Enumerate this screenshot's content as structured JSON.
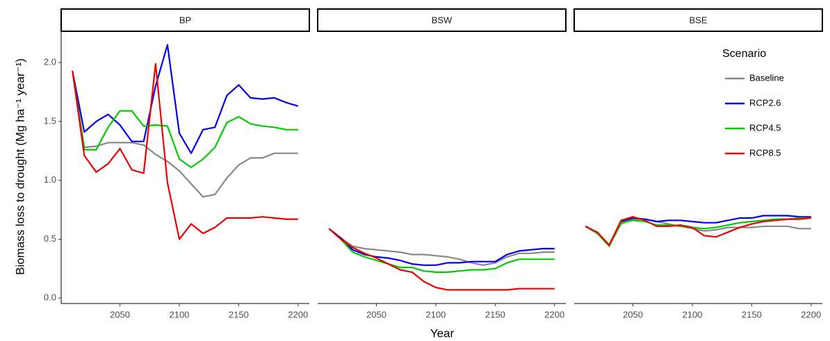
{
  "x_label": "Year",
  "y_label": "Biomass loss to drought (Mg ha⁻¹ year⁻¹)",
  "legend_title": "Scenario",
  "chart_data": [
    {
      "type": "line",
      "title": "BP",
      "x": [
        2010,
        2020,
        2030,
        2040,
        2050,
        2060,
        2070,
        2080,
        2090,
        2100,
        2110,
        2120,
        2130,
        2140,
        2150,
        2160,
        2170,
        2180,
        2190,
        2200
      ],
      "xlim": [
        2000.5,
        2209.5
      ],
      "xticks": [
        2050,
        2100,
        2150,
        2200
      ],
      "ylim": [
        -0.034,
        2.254
      ],
      "yticks": [
        {
          "value": 0,
          "label": "0.0"
        },
        0.5,
        {
          "value": 1,
          "label": "1.0"
        },
        1.5,
        {
          "value": 2,
          "label": "2.0"
        }
      ],
      "series": [
        {
          "name": "Baseline",
          "color": "#888888",
          "values": [
            1.93,
            1.28,
            1.29,
            1.32,
            1.32,
            1.32,
            1.3,
            1.22,
            1.16,
            1.08,
            0.97,
            0.86,
            0.88,
            1.02,
            1.13,
            1.19,
            1.19,
            1.23,
            1.23,
            1.23
          ]
        },
        {
          "name": "RCP2.6",
          "color": "#0000ee",
          "values": [
            1.93,
            1.41,
            1.5,
            1.56,
            1.47,
            1.33,
            1.33,
            1.8,
            2.15,
            1.4,
            1.23,
            1.43,
            1.45,
            1.72,
            1.81,
            1.7,
            1.69,
            1.7,
            1.66,
            1.63
          ]
        },
        {
          "name": "RCP4.5",
          "color": "#00cc00",
          "values": [
            1.93,
            1.26,
            1.26,
            1.45,
            1.59,
            1.59,
            1.46,
            1.47,
            1.46,
            1.18,
            1.11,
            1.18,
            1.28,
            1.49,
            1.54,
            1.48,
            1.46,
            1.45,
            1.43,
            1.43
          ]
        },
        {
          "name": "RCP8.5",
          "color": "#ee0000",
          "values": [
            1.93,
            1.21,
            1.07,
            1.14,
            1.27,
            1.09,
            1.06,
            1.99,
            0.98,
            0.5,
            0.63,
            0.55,
            0.6,
            0.68,
            0.68,
            0.68,
            0.69,
            0.68,
            0.67,
            0.67
          ]
        }
      ]
    },
    {
      "type": "line",
      "title": "BSW",
      "x": [
        2010,
        2020,
        2030,
        2040,
        2050,
        2060,
        2070,
        2080,
        2090,
        2100,
        2110,
        2120,
        2130,
        2140,
        2150,
        2160,
        2170,
        2180,
        2190,
        2200
      ],
      "xlim": [
        2000.5,
        2209.5
      ],
      "xticks": [
        2050,
        2100,
        2150,
        2200
      ],
      "ylim": [
        -0.034,
        2.254
      ],
      "series": [
        {
          "name": "Baseline",
          "color": "#888888",
          "values": [
            0.59,
            0.51,
            0.44,
            0.42,
            0.41,
            0.4,
            0.39,
            0.37,
            0.37,
            0.36,
            0.35,
            0.33,
            0.3,
            0.28,
            0.3,
            0.35,
            0.38,
            0.38,
            0.39,
            0.39
          ]
        },
        {
          "name": "RCP2.6",
          "color": "#0000ee",
          "values": [
            0.59,
            0.51,
            0.41,
            0.37,
            0.35,
            0.34,
            0.32,
            0.29,
            0.28,
            0.28,
            0.3,
            0.3,
            0.31,
            0.31,
            0.31,
            0.37,
            0.4,
            0.41,
            0.42,
            0.42
          ]
        },
        {
          "name": "RCP4.5",
          "color": "#00cc00",
          "values": [
            0.59,
            0.5,
            0.39,
            0.35,
            0.32,
            0.29,
            0.26,
            0.26,
            0.23,
            0.22,
            0.22,
            0.23,
            0.24,
            0.24,
            0.25,
            0.3,
            0.33,
            0.33,
            0.33,
            0.33
          ]
        },
        {
          "name": "RCP8.5",
          "color": "#ee0000",
          "values": [
            0.59,
            0.5,
            0.43,
            0.38,
            0.34,
            0.29,
            0.24,
            0.22,
            0.14,
            0.09,
            0.07,
            0.07,
            0.07,
            0.07,
            0.07,
            0.07,
            0.08,
            0.08,
            0.08,
            0.08
          ]
        }
      ]
    },
    {
      "type": "line",
      "title": "BSE",
      "x": [
        2010,
        2020,
        2030,
        2040,
        2050,
        2060,
        2070,
        2080,
        2090,
        2100,
        2110,
        2120,
        2130,
        2140,
        2150,
        2160,
        2170,
        2180,
        2190,
        2200
      ],
      "xlim": [
        2000.5,
        2209.5
      ],
      "xticks": [
        2050,
        2100,
        2150,
        2200
      ],
      "ylim": [
        -0.034,
        2.254
      ],
      "legend": "top-right",
      "series": [
        {
          "name": "Baseline",
          "color": "#888888",
          "values": [
            0.61,
            0.55,
            0.45,
            0.63,
            0.67,
            0.67,
            0.65,
            0.63,
            0.61,
            0.59,
            0.57,
            0.58,
            0.6,
            0.6,
            0.6,
            0.61,
            0.61,
            0.61,
            0.59,
            0.59
          ]
        },
        {
          "name": "RCP2.6",
          "color": "#0000ee",
          "values": [
            0.61,
            0.55,
            0.45,
            0.65,
            0.68,
            0.67,
            0.65,
            0.66,
            0.66,
            0.65,
            0.64,
            0.64,
            0.66,
            0.68,
            0.68,
            0.7,
            0.7,
            0.7,
            0.69,
            0.69
          ]
        },
        {
          "name": "RCP4.5",
          "color": "#00cc00",
          "values": [
            0.61,
            0.55,
            0.44,
            0.64,
            0.66,
            0.65,
            0.62,
            0.62,
            0.61,
            0.6,
            0.59,
            0.6,
            0.62,
            0.64,
            0.65,
            0.66,
            0.67,
            0.67,
            0.68,
            0.68
          ]
        },
        {
          "name": "RCP8.5",
          "color": "#ee0000",
          "values": [
            0.61,
            0.56,
            0.45,
            0.66,
            0.69,
            0.66,
            0.61,
            0.61,
            0.62,
            0.6,
            0.53,
            0.52,
            0.56,
            0.6,
            0.63,
            0.65,
            0.66,
            0.67,
            0.67,
            0.68
          ]
        }
      ]
    }
  ]
}
